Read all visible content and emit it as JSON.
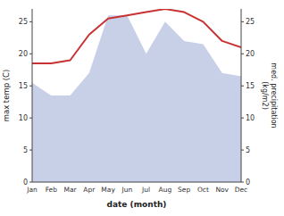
{
  "chart_data": {
    "type": "line",
    "xlabel": "date (month)",
    "ylabel": "max temp (C)",
    "y2label": "med. precipitation\n(kg/m2)",
    "categories": [
      "Jan",
      "Feb",
      "Mar",
      "Apr",
      "May",
      "Jun",
      "Jul",
      "Aug",
      "Sep",
      "Oct",
      "Nov",
      "Dec"
    ],
    "series": [
      {
        "type": "area",
        "axis": "y2",
        "color": "#c8d0e8",
        "values": [
          15.5,
          13.5,
          13.5,
          17.0,
          26.0,
          26.0,
          20.0,
          25.0,
          22.0,
          21.5,
          17.0,
          16.5
        ]
      },
      {
        "type": "line",
        "color": "#c83232",
        "values": [
          18.5,
          18.5,
          19.0,
          23.0,
          25.5,
          26.0,
          26.5,
          27.0,
          26.5,
          25.0,
          22.0,
          21.0
        ]
      }
    ],
    "ylim": [
      0,
      27
    ],
    "yticks": [
      0,
      5,
      10,
      15,
      20,
      25
    ],
    "y2lim": [
      0,
      27
    ],
    "y2ticks": [
      0,
      5,
      10,
      15,
      20,
      25
    ],
    "grid": false
  }
}
